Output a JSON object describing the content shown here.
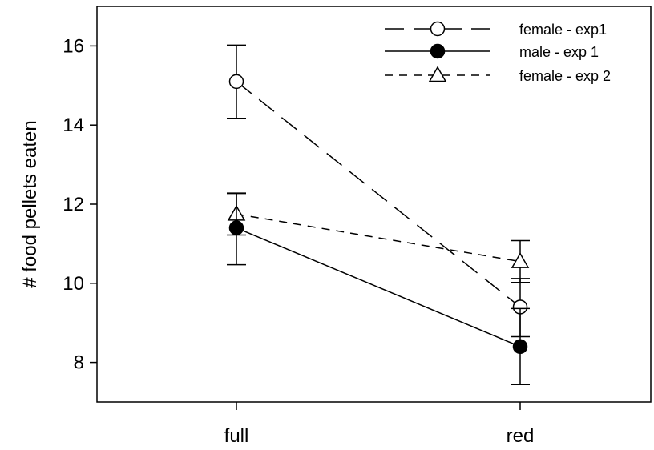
{
  "chart_data": {
    "type": "line",
    "title": "",
    "xlabel": "",
    "ylabel": "# food pellets eaten",
    "categories": [
      "full",
      "red"
    ],
    "ylim": [
      7,
      17
    ],
    "yticks": [
      8,
      10,
      12,
      14,
      16
    ],
    "ytick_labels": [
      "8",
      "10",
      "12",
      "14",
      "16"
    ],
    "grid": false,
    "legend_position": "top-right",
    "series": [
      {
        "name": "female - exp1",
        "values": [
          15.1,
          9.4
        ],
        "error": [
          [
            14.17,
            16.02
          ],
          [
            8.65,
            10.12
          ]
        ],
        "marker": "open-circle",
        "line_style": "long-dash",
        "color": "#000000"
      },
      {
        "name": "male - exp 1",
        "values": [
          11.4,
          8.4
        ],
        "error": [
          [
            10.47,
            12.27
          ],
          [
            7.44,
            9.36
          ]
        ],
        "marker": "filled-circle",
        "line_style": "solid",
        "color": "#000000"
      },
      {
        "name": "female - exp 2",
        "values": [
          11.75,
          10.55
        ],
        "error": [
          [
            11.22,
            12.28
          ],
          [
            10.02,
            11.08
          ]
        ],
        "marker": "open-triangle",
        "line_style": "short-dash",
        "color": "#000000"
      }
    ]
  }
}
